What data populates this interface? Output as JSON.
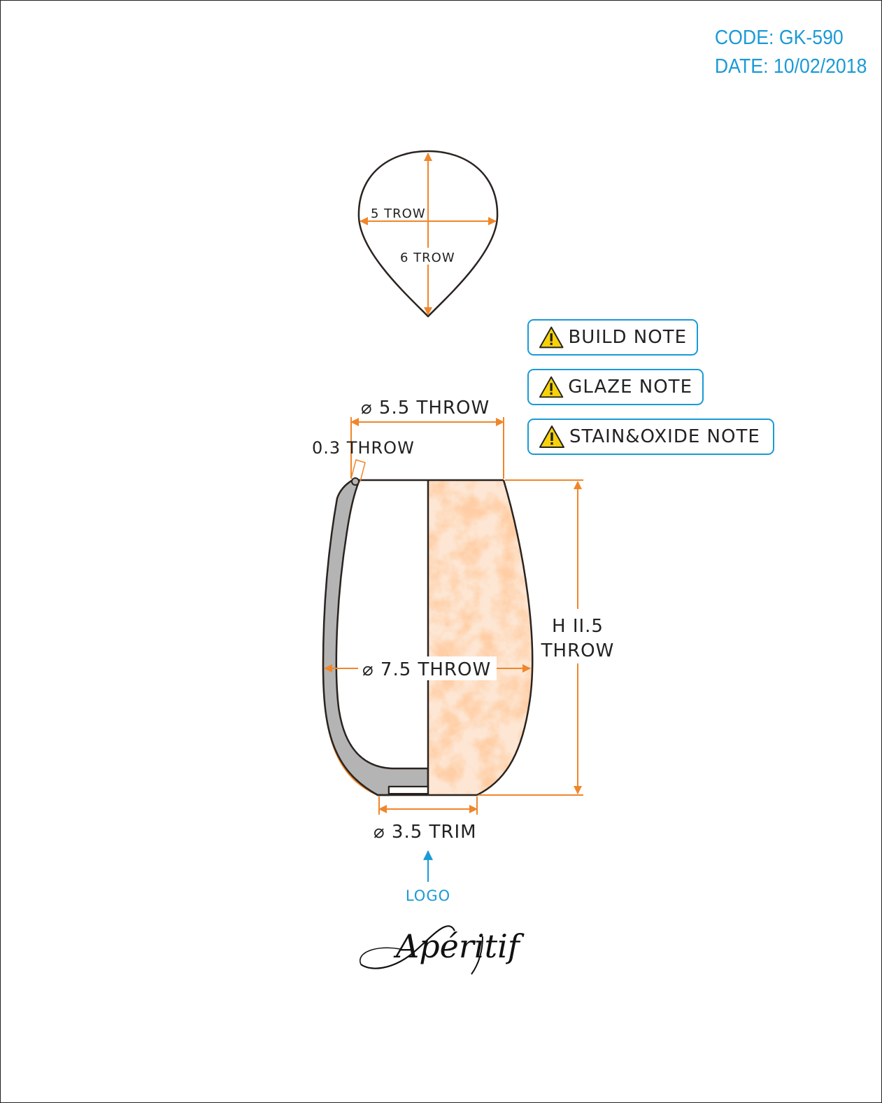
{
  "header": {
    "code": "CODE: GK-590",
    "date": "DATE: 10/02/2018"
  },
  "top_view": {
    "width_label": "5 TROW",
    "length_label": "6 TROW"
  },
  "notes": [
    {
      "label": "BUILD NOTE",
      "icon": "warning-icon"
    },
    {
      "label": "GLAZE NOTE",
      "icon": "warning-icon"
    },
    {
      "label": "STAIN&OXIDE NOTE",
      "icon": "warning-icon"
    }
  ],
  "section_view": {
    "top_diameter": "⌀ 5.5 THROW",
    "wall_thickness": "0.3 THROW",
    "max_diameter": "⌀ 7.5 THROW",
    "height_line1": "H II.5",
    "height_line2": "THROW",
    "foot_diameter": "⌀ 3.5 TRIM"
  },
  "logo": {
    "label": "LOGO",
    "wordmark": "Apéritif"
  },
  "colors": {
    "dimension": "#f0862a",
    "accent": "#1a9ad6",
    "outline": "#2a2320",
    "wall": "#b4b4b4",
    "glaze": "#f7b98a"
  }
}
